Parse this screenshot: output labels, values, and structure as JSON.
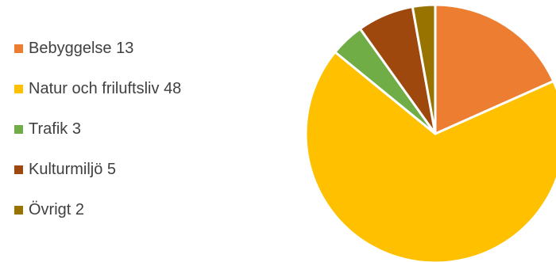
{
  "chart_data": {
    "type": "pie",
    "title": "",
    "legend_position": "left",
    "slices": [
      {
        "label": "Bebyggelse",
        "value": 13,
        "color": "#ED7D31"
      },
      {
        "label": "Natur och friluftsliv",
        "value": 48,
        "color": "#FFC000"
      },
      {
        "label": "Trafik",
        "value": 3,
        "color": "#70AD47"
      },
      {
        "label": "Kulturmiljö",
        "value": 5,
        "color": "#9E480E"
      },
      {
        "label": "Övrigt",
        "value": 2,
        "color": "#997300"
      }
    ]
  }
}
